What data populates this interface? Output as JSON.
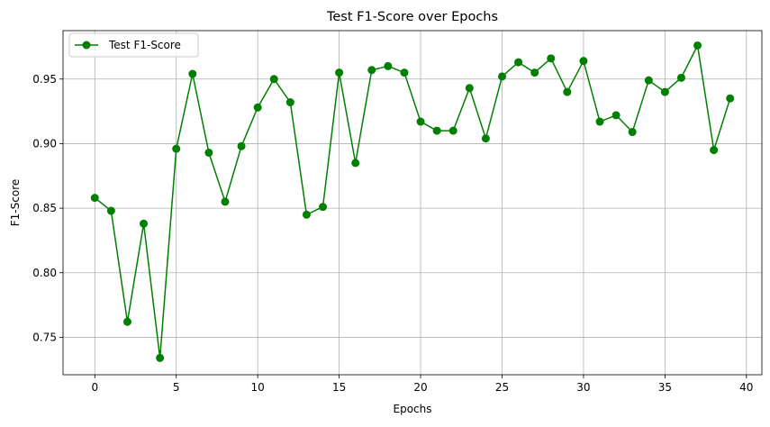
{
  "chart_data": {
    "type": "line",
    "title": "Test F1-Score over Epochs",
    "xlabel": "Epochs",
    "ylabel": "F1-Score",
    "grid": true,
    "legend_position": "top-left",
    "xlim": [
      -1.95,
      40.95
    ],
    "ylim": [
      0.721,
      0.9875
    ],
    "xticks": [
      0,
      5,
      10,
      15,
      20,
      25,
      30,
      35,
      40
    ],
    "xtick_labels": [
      "0",
      "5",
      "10",
      "15",
      "20",
      "25",
      "30",
      "35",
      "40"
    ],
    "yticks": [
      0.75,
      0.8,
      0.85,
      0.9,
      0.95
    ],
    "ytick_labels": [
      "0.75",
      "0.80",
      "0.85",
      "0.90",
      "0.95"
    ],
    "series": [
      {
        "name": "Test F1-Score",
        "color": "#008000",
        "marker": "circle",
        "x": [
          0,
          1,
          2,
          3,
          4,
          5,
          6,
          7,
          8,
          9,
          10,
          11,
          12,
          13,
          14,
          15,
          16,
          17,
          18,
          19,
          20,
          21,
          22,
          23,
          24,
          25,
          26,
          27,
          28,
          29,
          30,
          31,
          32,
          33,
          34,
          35,
          36,
          37,
          38,
          39
        ],
        "values": [
          0.858,
          0.848,
          0.762,
          0.838,
          0.734,
          0.896,
          0.954,
          0.893,
          0.855,
          0.898,
          0.928,
          0.95,
          0.932,
          0.845,
          0.851,
          0.955,
          0.885,
          0.957,
          0.96,
          0.955,
          0.917,
          0.91,
          0.91,
          0.943,
          0.904,
          0.952,
          0.963,
          0.955,
          0.966,
          0.94,
          0.964,
          0.917,
          0.922,
          0.909,
          0.949,
          0.94,
          0.951,
          0.976,
          0.895,
          0.935
        ]
      }
    ]
  }
}
